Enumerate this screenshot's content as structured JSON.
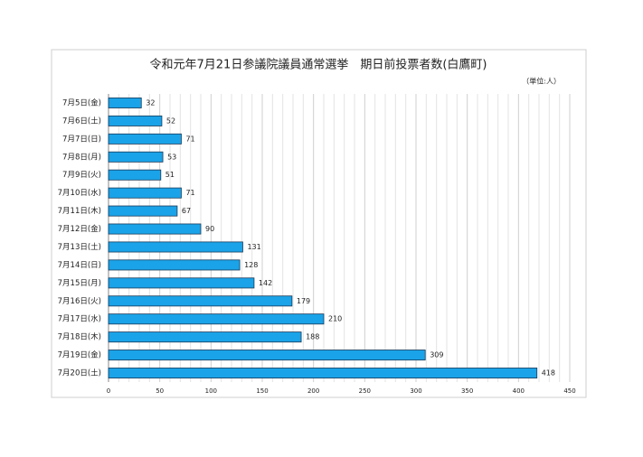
{
  "chart_data": {
    "type": "bar",
    "orientation": "horizontal",
    "title": "令和元年7月21日参議院議員通常選挙　期日前投票者数(白鷹町)",
    "unit_note": "（単位:人）",
    "categories": [
      "7月5日(金)",
      "7月6日(土)",
      "7月7日(日)",
      "7月8日(月)",
      "7月9日(火)",
      "7月10日(水)",
      "7月11日(木)",
      "7月12日(金)",
      "7月13日(土)",
      "7月14日(日)",
      "7月15日(月)",
      "7月16日(火)",
      "7月17日(水)",
      "7月18日(木)",
      "7月19日(金)",
      "7月20日(土)"
    ],
    "values": [
      32,
      52,
      71,
      53,
      51,
      71,
      67,
      90,
      131,
      128,
      142,
      179,
      210,
      188,
      309,
      418
    ],
    "color": "#1aa3e8",
    "xlim": [
      0,
      450
    ],
    "xticks": [
      0,
      50,
      100,
      150,
      200,
      250,
      300,
      350,
      400,
      450
    ],
    "xminorticks": [
      10,
      20,
      30,
      40,
      60,
      70,
      80,
      90,
      110,
      120,
      130,
      140,
      160,
      170,
      180,
      190,
      210,
      220,
      230,
      240,
      260,
      270,
      280,
      290,
      310,
      320,
      330,
      340,
      360,
      370,
      380,
      390,
      410,
      420,
      430,
      440
    ],
    "grid": true
  }
}
